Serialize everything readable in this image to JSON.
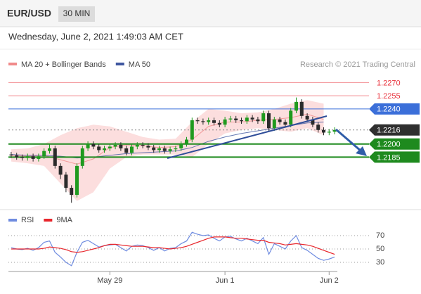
{
  "header": {
    "symbol": "EUR/USD",
    "interval": "30 MIN",
    "timestamp": "Wednesday, June 2, 2021 1:49:03 AM CET"
  },
  "chart_data": [
    {
      "type": "candlestick",
      "credit": "Research © 2021 Trading Central",
      "xlim": [
        0,
        60
      ],
      "ylim": [
        1.213,
        1.23
      ],
      "up_color": "#1f9a1f",
      "down_color": "#2b2b2b",
      "open": [
        1.2188,
        1.2187,
        1.2185,
        1.2184,
        1.2186,
        1.2183,
        1.2186,
        1.2192,
        1.2195,
        1.2175,
        1.2165,
        1.215,
        1.2142,
        1.2175,
        1.2195,
        1.22,
        1.2197,
        1.2193,
        1.2195,
        1.2197,
        1.2199,
        1.2195,
        1.219,
        1.2197,
        1.2199,
        1.2198,
        1.2196,
        1.2193,
        1.2195,
        1.2192,
        1.2194,
        1.2195,
        1.22,
        1.2205,
        1.2227,
        1.2226,
        1.2225,
        1.2227,
        1.2224,
        1.2222,
        1.2228,
        1.2229,
        1.2227,
        1.2226,
        1.223,
        1.2228,
        1.2226,
        1.2235,
        1.2218,
        1.2228,
        1.2225,
        1.2222,
        1.2238,
        1.2248,
        1.2232,
        1.2228,
        1.2222,
        1.2216,
        1.2213,
        1.2214
      ],
      "high": [
        1.2191,
        1.219,
        1.2188,
        1.2189,
        1.2189,
        1.2189,
        1.2195,
        1.22,
        1.2198,
        1.2178,
        1.2168,
        1.2153,
        1.2178,
        1.2198,
        1.2203,
        1.2203,
        1.22,
        1.2198,
        1.22,
        1.2202,
        1.2202,
        1.2198,
        1.22,
        1.2202,
        1.2202,
        1.2201,
        1.2199,
        1.2198,
        1.2198,
        1.2197,
        1.2198,
        1.2203,
        1.2208,
        1.223,
        1.223,
        1.2229,
        1.223,
        1.223,
        1.2227,
        1.2231,
        1.2232,
        1.2232,
        1.223,
        1.2233,
        1.2233,
        1.2231,
        1.2238,
        1.2238,
        1.2231,
        1.2231,
        1.2228,
        1.2241,
        1.2253,
        1.2251,
        1.2235,
        1.2231,
        1.2225,
        1.2219,
        1.2217,
        1.2219
      ],
      "low": [
        1.2184,
        1.2182,
        1.2181,
        1.2181,
        1.218,
        1.218,
        1.2183,
        1.2189,
        1.2172,
        1.216,
        1.2145,
        1.2133,
        1.2139,
        1.2172,
        1.2192,
        1.2194,
        1.219,
        1.219,
        1.2192,
        1.2194,
        1.2192,
        1.2187,
        1.2187,
        1.2194,
        1.2195,
        1.2193,
        1.219,
        1.219,
        1.2189,
        1.2189,
        1.2191,
        1.2192,
        1.2197,
        1.2202,
        1.2223,
        1.2222,
        1.2222,
        1.2221,
        1.2219,
        1.2219,
        1.2225,
        1.2224,
        1.2223,
        1.2223,
        1.2225,
        1.2223,
        1.2223,
        1.2215,
        1.2215,
        1.2222,
        1.2219,
        1.2219,
        1.2235,
        1.2229,
        1.2225,
        1.2219,
        1.2213,
        1.221,
        1.221,
        1.2211
      ],
      "close": [
        1.2187,
        1.2185,
        1.2184,
        1.2186,
        1.2183,
        1.2186,
        1.2192,
        1.2195,
        1.2175,
        1.2165,
        1.215,
        1.2142,
        1.2175,
        1.2195,
        1.22,
        1.2197,
        1.2193,
        1.2195,
        1.2197,
        1.2199,
        1.2195,
        1.219,
        1.2197,
        1.2199,
        1.2198,
        1.2196,
        1.2193,
        1.2195,
        1.2192,
        1.2194,
        1.2195,
        1.22,
        1.2205,
        1.2227,
        1.2226,
        1.2225,
        1.2227,
        1.2224,
        1.2222,
        1.2228,
        1.2229,
        1.2227,
        1.2226,
        1.223,
        1.2228,
        1.2226,
        1.2235,
        1.2218,
        1.2228,
        1.2225,
        1.2222,
        1.2238,
        1.2248,
        1.2232,
        1.2228,
        1.2222,
        1.2216,
        1.2213,
        1.2214,
        1.2216
      ],
      "indicators": [
        {
          "name": "MA 20 + Bollinger Bands",
          "color": "#f08a8a",
          "band_color": "#fbd6d6",
          "x": [
            0.5,
            3.5,
            6.5,
            9.5,
            12.5,
            15.5,
            18.5,
            21.5,
            24.5,
            27.5,
            30.5,
            33.5,
            36.5,
            39.5,
            42.5,
            45.5,
            48.5,
            51.5,
            54.5,
            57.5
          ],
          "upper": [
            1.2194,
            1.2195,
            1.22,
            1.221,
            1.2218,
            1.2222,
            1.222,
            1.2214,
            1.2208,
            1.2205,
            1.2206,
            1.2225,
            1.224,
            1.2238,
            1.2235,
            1.2236,
            1.224,
            1.2246,
            1.225,
            1.2246
          ],
          "lower": [
            1.218,
            1.2178,
            1.2175,
            1.2155,
            1.2135,
            1.2145,
            1.2172,
            1.2185,
            1.2188,
            1.2188,
            1.2188,
            1.2185,
            1.22,
            1.2212,
            1.2216,
            1.2218,
            1.2216,
            1.2214,
            1.2218,
            1.221
          ],
          "values": [
            1.2187,
            1.2186,
            1.2187,
            1.2182,
            1.2177,
            1.2183,
            1.2196,
            1.2199,
            1.2198,
            1.2196,
            1.2197,
            1.2205,
            1.222,
            1.2225,
            1.2225,
            1.2227,
            1.2228,
            1.223,
            1.2234,
            1.2228
          ]
        },
        {
          "name": "MA 50",
          "color": "#3f57a0",
          "x": [
            0.5,
            3.5,
            6.5,
            9.5,
            12.5,
            15.5,
            18.5,
            21.5,
            24.5,
            27.5,
            30.5,
            33.5,
            36.5,
            39.5,
            42.5,
            45.5,
            48.5,
            51.5,
            54.5,
            57.5
          ],
          "values": [
            1.2188,
            1.2187,
            1.2187,
            1.2186,
            1.2184,
            1.2185,
            1.2187,
            1.2189,
            1.219,
            1.2191,
            1.2192,
            1.2196,
            1.2203,
            1.2208,
            1.2212,
            1.2215,
            1.2218,
            1.2221,
            1.2224,
            1.2225
          ]
        }
      ],
      "levels": [
        {
          "value": 1.227,
          "label": "1.2270",
          "color": "#e8303a",
          "badge": false
        },
        {
          "value": 1.2255,
          "label": "1.2255",
          "color": "#e8303a",
          "badge": false
        },
        {
          "value": 1.224,
          "label": "1.2240",
          "color": "#3b6fd9",
          "badge": true
        },
        {
          "value": 1.2216,
          "label": "1.2216",
          "color": "#2f2f2f",
          "badge": true,
          "dotted": true
        },
        {
          "value": 1.22,
          "label": "1.2200",
          "color": "#1e8a1e",
          "badge": true
        },
        {
          "value": 1.2185,
          "label": "1.2185",
          "color": "#1e8a1e",
          "badge": true
        }
      ]
    },
    {
      "type": "line",
      "xlim": [
        0,
        60
      ],
      "ylim": [
        20,
        80
      ],
      "yticks": [
        70,
        50,
        30
      ],
      "xticks": [
        {
          "value": 18.5,
          "label": "May 29"
        },
        {
          "value": 39.5,
          "label": "Jun 1"
        },
        {
          "value": 58.5,
          "label": "Jun 2"
        }
      ],
      "series": [
        {
          "name": "RSI",
          "color": "#6f8ce0",
          "values": [
            52,
            50,
            49,
            51,
            48,
            52,
            60,
            62,
            45,
            38,
            30,
            25,
            45,
            60,
            63,
            58,
            53,
            55,
            56,
            57,
            52,
            47,
            54,
            56,
            55,
            52,
            48,
            52,
            47,
            51,
            52,
            58,
            62,
            75,
            72,
            70,
            71,
            66,
            62,
            68,
            69,
            65,
            62,
            66,
            62,
            58,
            67,
            42,
            58,
            54,
            50,
            62,
            70,
            52,
            48,
            42,
            36,
            33,
            35,
            38
          ]
        },
        {
          "name": "9MA",
          "color": "#e8262c",
          "values": [
            50,
            50,
            50,
            50,
            50,
            50,
            51,
            53,
            52,
            51,
            49,
            46,
            45,
            46,
            48,
            50,
            52,
            55,
            57,
            57,
            56,
            55,
            54,
            54,
            54,
            53,
            52,
            52,
            51,
            50,
            51,
            52,
            54,
            57,
            60,
            63,
            66,
            68,
            68,
            68,
            67,
            66,
            66,
            65,
            64,
            63,
            63,
            60,
            59,
            58,
            56,
            57,
            58,
            57,
            56,
            54,
            51,
            48,
            45,
            42
          ]
        }
      ]
    }
  ]
}
